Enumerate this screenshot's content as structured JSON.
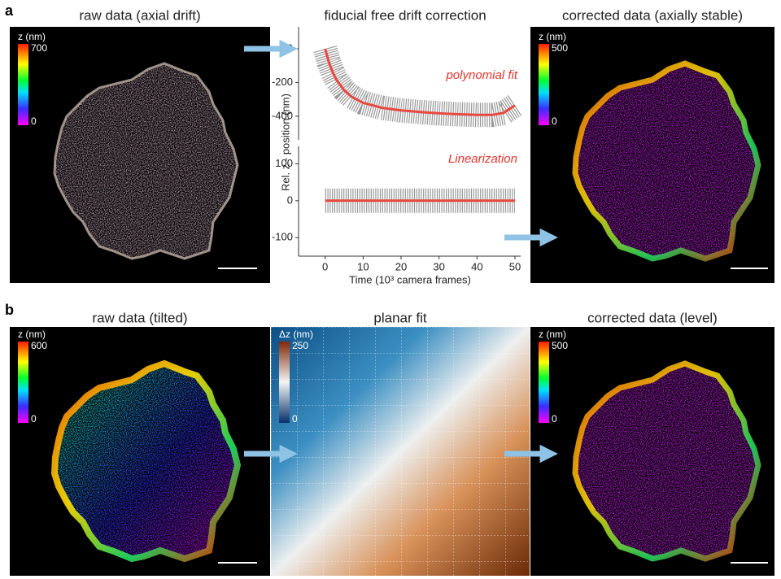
{
  "panel_a": {
    "label": "a",
    "left": {
      "title": "raw data (axial drift)",
      "colorbar": {
        "label": "z (nm)",
        "max": 700,
        "min": 0
      }
    },
    "chart": {
      "type": "line",
      "title": "fiducial free drift correction",
      "y_label": "Rel. z - position (nm)",
      "x_label": "Time (10³ camera frames)",
      "xlim": [
        -7,
        51.5
      ],
      "xticks": [
        0,
        10,
        20,
        30,
        40,
        50
      ],
      "subplots": [
        {
          "annotation": "polynomial fit",
          "ylim": [
            -540,
            130
          ],
          "yticks": [
            0,
            -200,
            -400
          ],
          "series": {
            "color": "#e8483f",
            "x": [
              0,
              1,
              2,
              3,
              5,
              7,
              10,
              15,
              20,
              25,
              30,
              35,
              40,
              44,
              47,
              50
            ],
            "values": [
              0,
              -80,
              -140,
              -185,
              -245,
              -285,
              -320,
              -350,
              -365,
              -375,
              -383,
              -388,
              -392,
              -392,
              -380,
              -335
            ]
          }
        },
        {
          "annotation": "Linearization",
          "ylim": [
            -150,
            147
          ],
          "yticks": [
            100,
            0,
            -100
          ],
          "series": {
            "color": "#e8483f",
            "x": [
              0,
              50
            ],
            "values": [
              0,
              0
            ]
          }
        }
      ]
    },
    "right": {
      "title": "corrected data (axially stable)",
      "colorbar": {
        "label": "z (nm)",
        "max": 500,
        "min": 0
      }
    }
  },
  "panel_b": {
    "label": "b",
    "left": {
      "title": "raw data (tilted)",
      "colorbar": {
        "label": "z (nm)",
        "max": 600,
        "min": 0
      }
    },
    "middle": {
      "title": "planar fit",
      "colorbar": {
        "label": "Δz (nm)",
        "max": 250,
        "min": 0
      }
    },
    "right": {
      "title": "corrected data (level)",
      "colorbar": {
        "label": "z (nm)",
        "max": 500,
        "min": 0
      }
    }
  }
}
